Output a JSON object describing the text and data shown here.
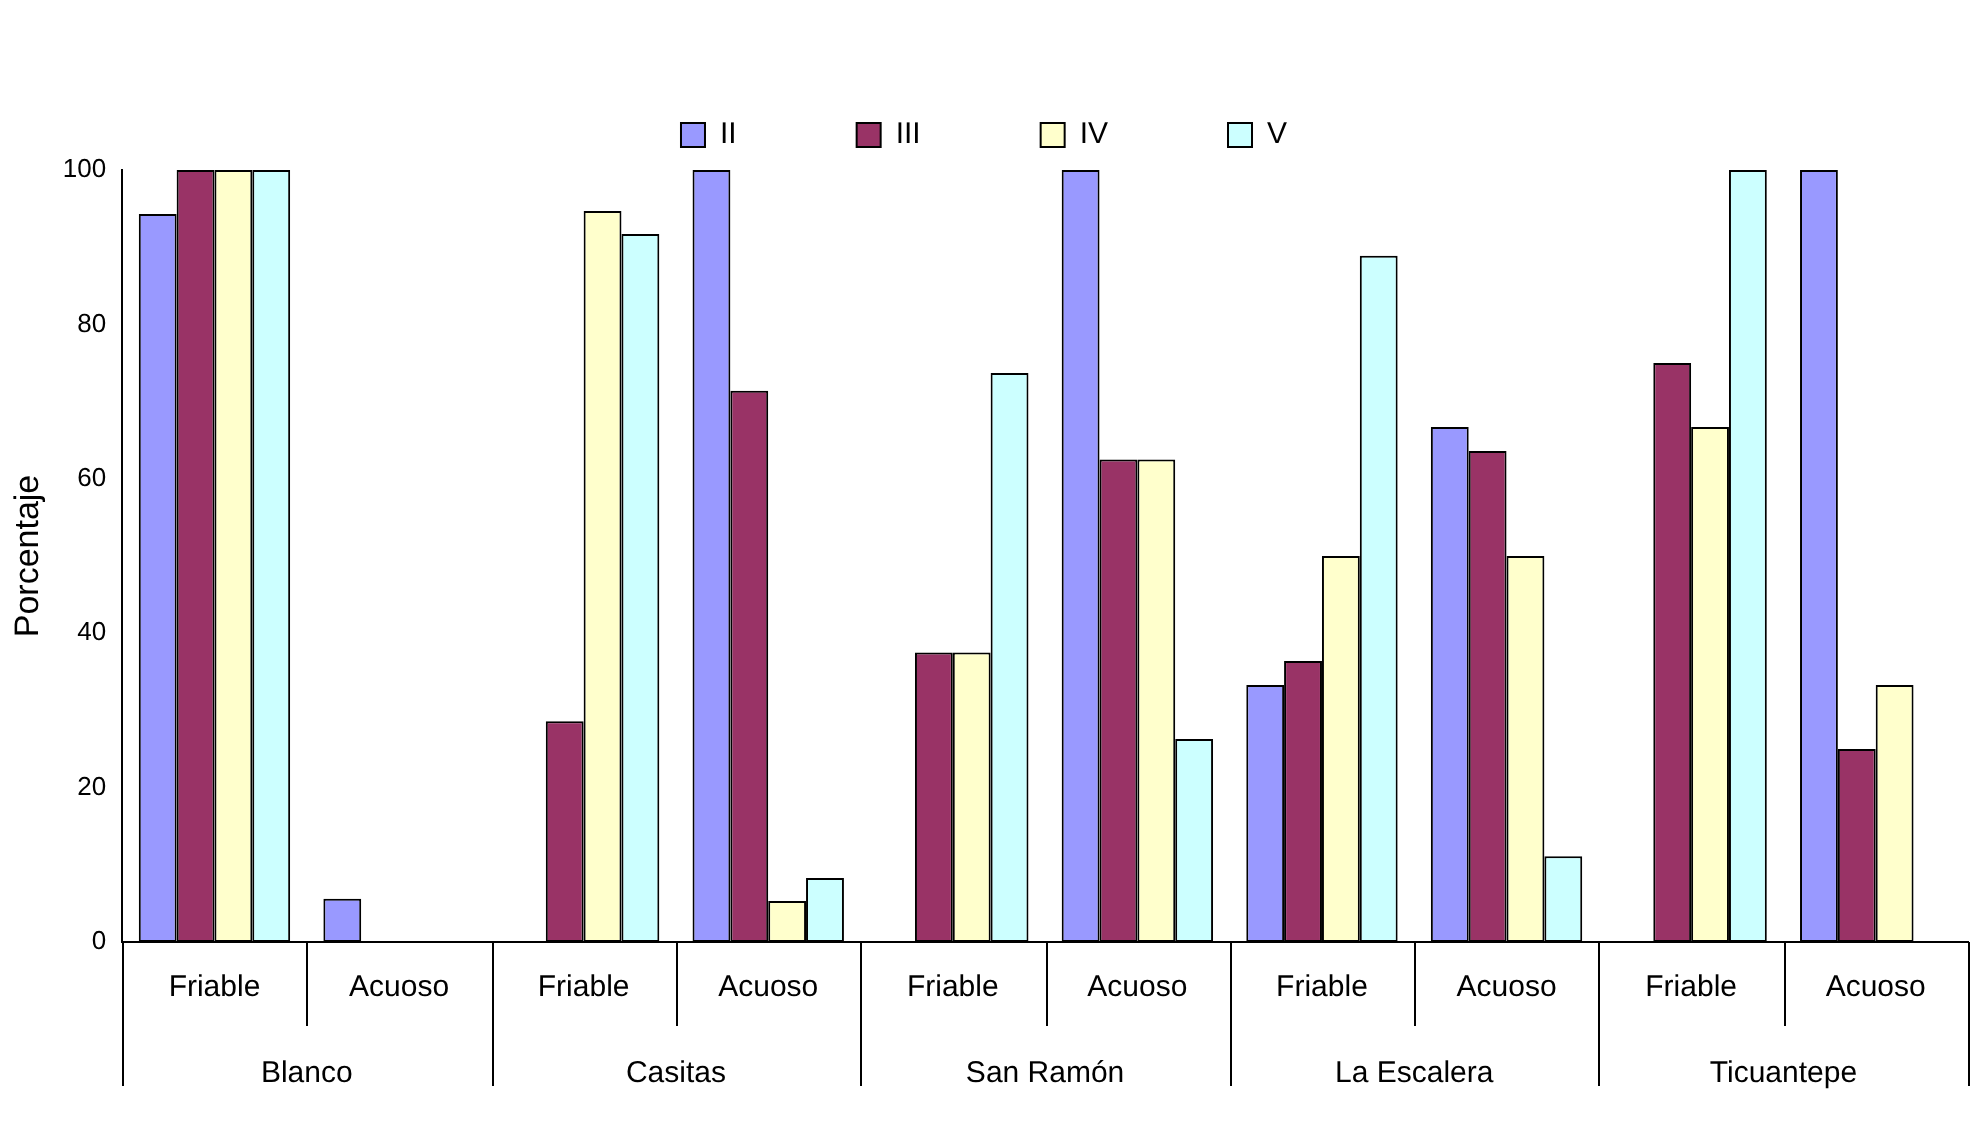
{
  "chart_data": {
    "type": "bar",
    "ylabel": "Porcentaje",
    "categories": [
      "Friable",
      "Acuoso",
      "Friable",
      "Acuoso",
      "Friable",
      "Acuoso",
      "Friable",
      "Acuoso",
      "Friable",
      "Acuoso"
    ],
    "annotations": [
      "Blanco",
      "Casitas",
      "San Ramón",
      "La Escalera",
      "Ticuantepe"
    ],
    "series": [
      {
        "name": "II",
        "color": "#9999ff",
        "values": [
          94.3,
          5.6,
          0,
          100,
          0,
          100,
          33.3,
          66.7,
          0,
          100
        ]
      },
      {
        "name": "III",
        "color": "#993366",
        "values": [
          100,
          0,
          28.6,
          71.4,
          37.5,
          62.5,
          36.4,
          63.6,
          75,
          25
        ]
      },
      {
        "name": "IV",
        "color": "#ffffcc",
        "values": [
          100,
          0,
          94.7,
          5.3,
          37.5,
          62.5,
          50,
          50,
          66.7,
          33.3
        ]
      },
      {
        "name": "V",
        "color": "#ccffff",
        "values": [
          100,
          0,
          91.7,
          8.3,
          73.7,
          26.3,
          88.9,
          11.1,
          100,
          0
        ]
      }
    ],
    "ylim": [
      0,
      100
    ],
    "yticks": [
      0,
      20,
      40,
      60,
      80,
      100
    ],
    "grid": false,
    "legend": "top"
  }
}
